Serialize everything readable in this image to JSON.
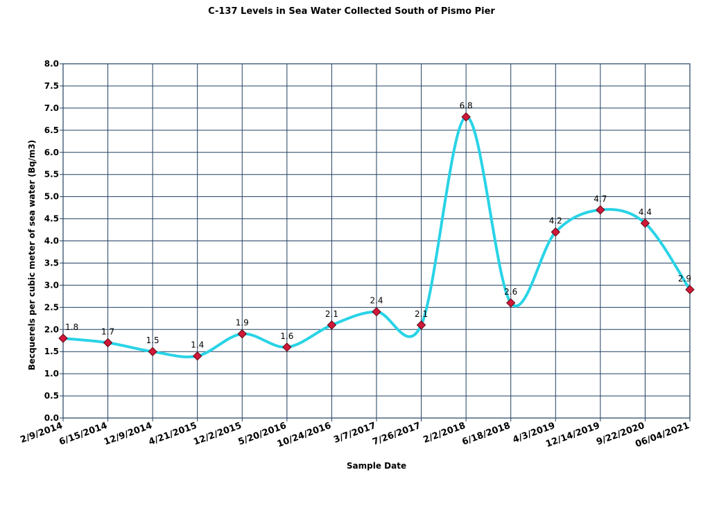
{
  "chart_data": {
    "type": "line",
    "title": "C-137 Levels in Sea Water Collected South of Pismo Pier",
    "xlabel": "Sample Date",
    "ylabel": "Becquerels per cubic meter of sea water (Bq/m3)",
    "categories": [
      "2/9/2014",
      "6/15/2014",
      "12/9/2014",
      "4/21/2015",
      "12/2/2015",
      "5/20/2016",
      "10/24/2016",
      "3/7/2017",
      "7/26/2017",
      "2/2/2018",
      "6/18/2018",
      "4/3/2019",
      "12/14/2019",
      "9/22/2020",
      "06/04/2021"
    ],
    "series": [
      {
        "values": [
          1.8,
          1.7,
          1.5,
          1.4,
          1.9,
          1.6,
          2.1,
          2.4,
          2.1,
          6.8,
          2.6,
          4.2,
          4.7,
          4.4,
          2.9
        ]
      }
    ],
    "data_labels": [
      "1.8",
      "1.7",
      "1.5",
      "1.4",
      "1.9",
      "1.6",
      "2.1",
      "2.4",
      "2.1",
      "6.8",
      "2.6",
      "4.2",
      "4.7",
      "4.4",
      "2.9"
    ],
    "yticks": [
      "0.0",
      "0.5",
      "1.0",
      "1.5",
      "2.0",
      "2.5",
      "3.0",
      "3.5",
      "4.0",
      "4.5",
      "5.0",
      "5.5",
      "6.0",
      "6.5",
      "7.0",
      "7.5",
      "8.0"
    ],
    "ylim": [
      0,
      8
    ],
    "ystep": 0.5,
    "grid": true,
    "smooth": true,
    "colors": {
      "line": "#29d3e6",
      "marker": "#d0183a",
      "marker_edge": "#5a0a14",
      "grid": "#1f3f5f"
    }
  }
}
